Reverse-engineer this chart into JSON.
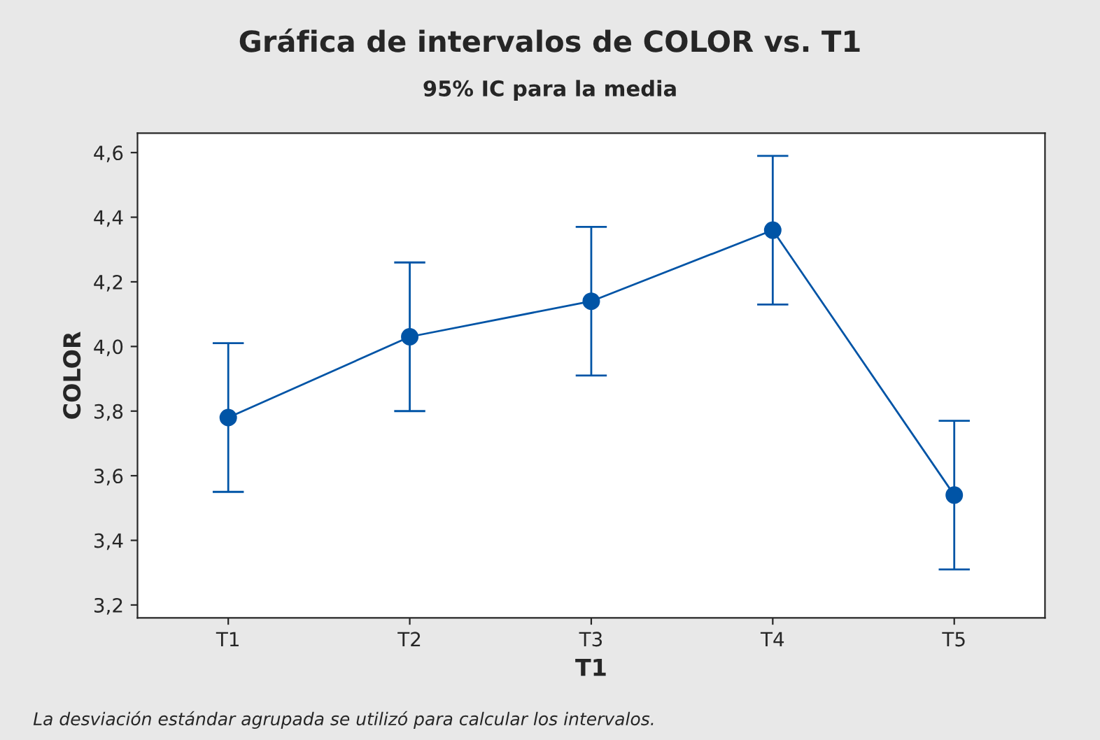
{
  "chart_data": {
    "type": "line",
    "title": "Gráfica de intervalos de COLOR vs. T1",
    "subtitle": "95% IC para la media",
    "xlabel": "T1",
    "ylabel": "COLOR",
    "categories": [
      "T1",
      "T2",
      "T3",
      "T4",
      "T5"
    ],
    "series": [
      {
        "color": "#0054a6",
        "values": [
          3.78,
          4.03,
          4.14,
          4.36,
          3.54
        ],
        "errors": [
          0.23,
          0.23,
          0.23,
          0.23,
          0.23
        ]
      }
    ],
    "ylim": [
      3.16,
      4.66
    ],
    "yticks": [
      {
        "value": 3.2,
        "label": "3,2"
      },
      {
        "value": 3.4,
        "label": "3,4"
      },
      {
        "value": 3.6,
        "label": "3,6"
      },
      {
        "value": 3.8,
        "label": "3,8"
      },
      {
        "value": 4.0,
        "label": "4,0"
      },
      {
        "value": 4.2,
        "label": "4,2"
      },
      {
        "value": 4.4,
        "label": "4,4"
      },
      {
        "value": 4.6,
        "label": "4,6"
      }
    ],
    "marker": "circle",
    "line_style": "solid",
    "grid": false,
    "legend": false,
    "annotations": [
      "La desviación estándar agrupada se utilizó para calcular los intervalos."
    ]
  }
}
